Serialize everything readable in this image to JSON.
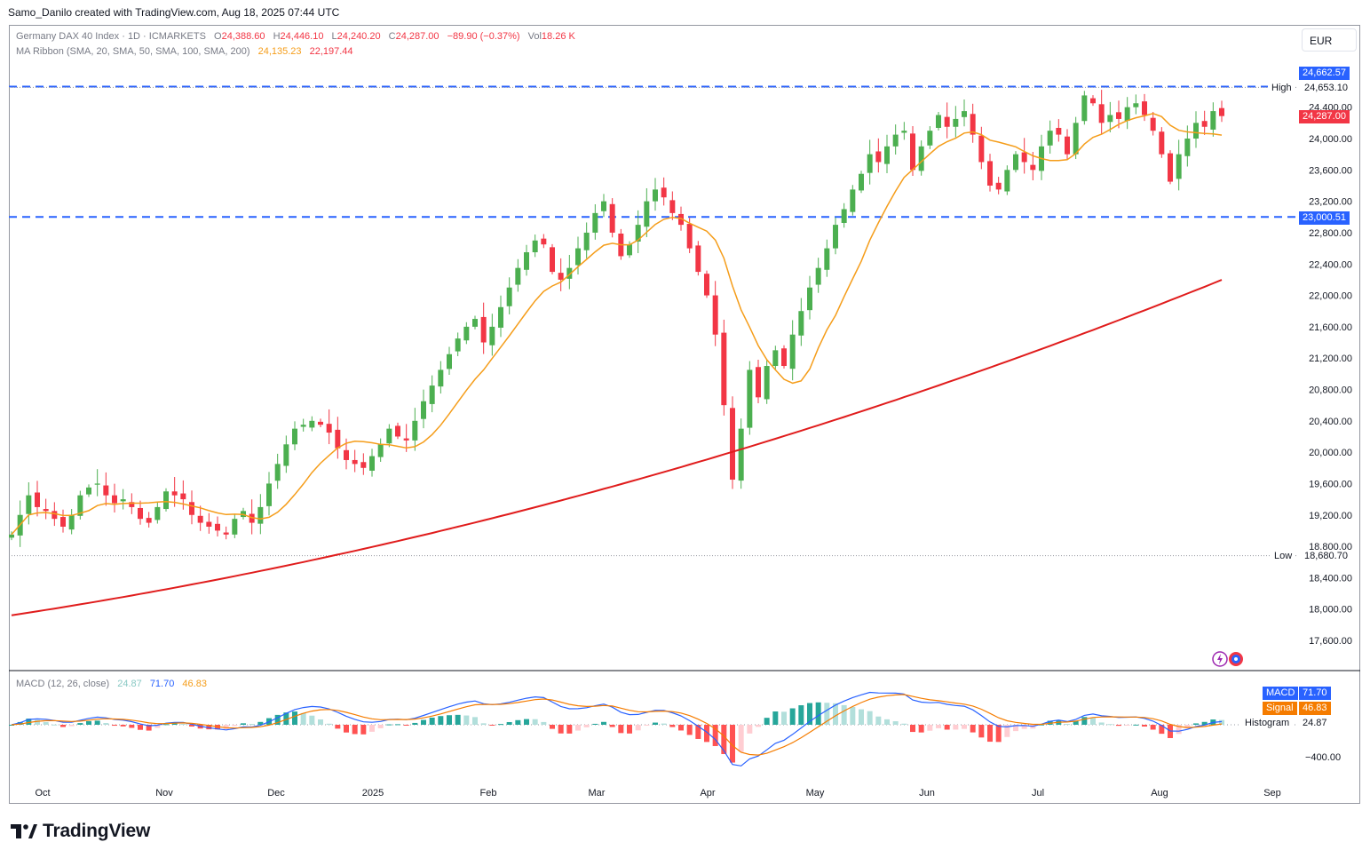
{
  "credit": "Samo_Danilo created with TradingView.com, Aug 18, 2025 07:44 UTC",
  "currency": "EUR",
  "brand": "TradingView",
  "legend": {
    "symbol": "Germany DAX 40 Index · 1D · ICMARKETS",
    "o_label": "O",
    "o": "24,388.60",
    "h_label": "H",
    "h": "24,446.10",
    "l_label": "L",
    "l": "24,240.20",
    "c_label": "C",
    "c": "24,287.00",
    "change": "−89.90 (−0.37%)",
    "vol_label": "Vol",
    "vol": "18.26 K",
    "ma_title": "MA Ribbon (SMA, 20, SMA, 50, SMA, 100, SMA, 200)",
    "ma20": "24,135.23",
    "ma200": "22,197.44",
    "macd_title": "MACD (12, 26, close)",
    "macd_hist": "24.87",
    "macd_line": "71.70",
    "macd_signal": "46.83"
  },
  "price_tags": {
    "resistance": "24,662.57",
    "high_label": "High",
    "high": "24,653.10",
    "last": "24,287.00",
    "support": "23,000.51",
    "low_label": "Low",
    "low": "18,680.70",
    "macd_label": "MACD",
    "macd": "71.70",
    "signal_label": "Signal",
    "signal": "46.83",
    "hist_label": "Histogram",
    "hist": "24.87",
    "macd_axis": "−400.00"
  },
  "colors": {
    "up": "#4caf50",
    "down": "#f23645",
    "ma20": "#f59d1a",
    "ma200": "#e01c1c",
    "levels": "#2962ff",
    "macd": "#2962ff",
    "signal": "#f57c00",
    "hist_up": "#26a69a",
    "hist_up_light": "#b2dfdb",
    "hist_down": "#ff5252",
    "hist_down_light": "#ffcdd2"
  },
  "chart_data": [
    {
      "type": "candlestick",
      "symbol": "Germany DAX 40 Index",
      "interval": "1D",
      "y_ticks": [
        17600,
        18000,
        18400,
        18800,
        19200,
        19600,
        20000,
        20400,
        20800,
        21200,
        21600,
        22000,
        22400,
        22800,
        23200,
        23600,
        24000,
        24400
      ],
      "x_tick_labels": [
        "Oct",
        "Nov",
        "Dec",
        "2025",
        "Feb",
        "Mar",
        "Apr",
        "May",
        "Jun",
        "Jul",
        "Aug",
        "Sep"
      ],
      "horizontal_levels": [
        24662.57,
        23000.51
      ],
      "closes": [
        18950,
        19200,
        19450,
        19300,
        19250,
        19150,
        19050,
        19200,
        19450,
        19550,
        19600,
        19450,
        19350,
        19400,
        19300,
        19150,
        19100,
        19300,
        19500,
        19450,
        19400,
        19200,
        19100,
        19050,
        19000,
        18950,
        19150,
        19250,
        19100,
        19300,
        19600,
        19850,
        20100,
        20300,
        20350,
        20400,
        20350,
        20250,
        20050,
        19900,
        19850,
        19800,
        19950,
        20100,
        20300,
        20200,
        20150,
        20400,
        20650,
        20850,
        21050,
        21250,
        21450,
        21600,
        21700,
        21400,
        21600,
        21850,
        22100,
        22350,
        22550,
        22700,
        22650,
        22300,
        22200,
        22350,
        22600,
        22800,
        23050,
        23200,
        22800,
        22500,
        22650,
        22900,
        23200,
        23350,
        23250,
        23050,
        22900,
        22600,
        22300,
        22000,
        21500,
        20600,
        19650,
        20300,
        21050,
        20700,
        21100,
        21300,
        21100,
        21500,
        21800,
        22100,
        22350,
        22600,
        22900,
        23100,
        23350,
        23550,
        23800,
        23700,
        23900,
        24050,
        24100,
        23600,
        23900,
        24100,
        24300,
        24150,
        24250,
        24350,
        24050,
        23700,
        23400,
        23350,
        23600,
        23800,
        23700,
        23600,
        23900,
        24100,
        24050,
        23800,
        24200,
        24550,
        24450,
        24200,
        24300,
        24250,
        24400,
        24450,
        24300,
        24100,
        23800,
        23450,
        23800,
        24000,
        24200,
        24150,
        24350,
        24287
      ],
      "ma20_end": 24135.23,
      "ma200_end": 22197.44,
      "last": {
        "open": 24388.6,
        "high": 24446.1,
        "low": 24240.2,
        "close": 24287.0,
        "change": -89.9,
        "change_pct": -0.37
      },
      "high": 24653.1,
      "low": 18680.7
    },
    {
      "type": "macd",
      "params": "12, 26, close",
      "y_ticks": [
        -400
      ],
      "macd_last": 71.7,
      "signal_last": 46.83,
      "histogram_last": 24.87
    }
  ]
}
